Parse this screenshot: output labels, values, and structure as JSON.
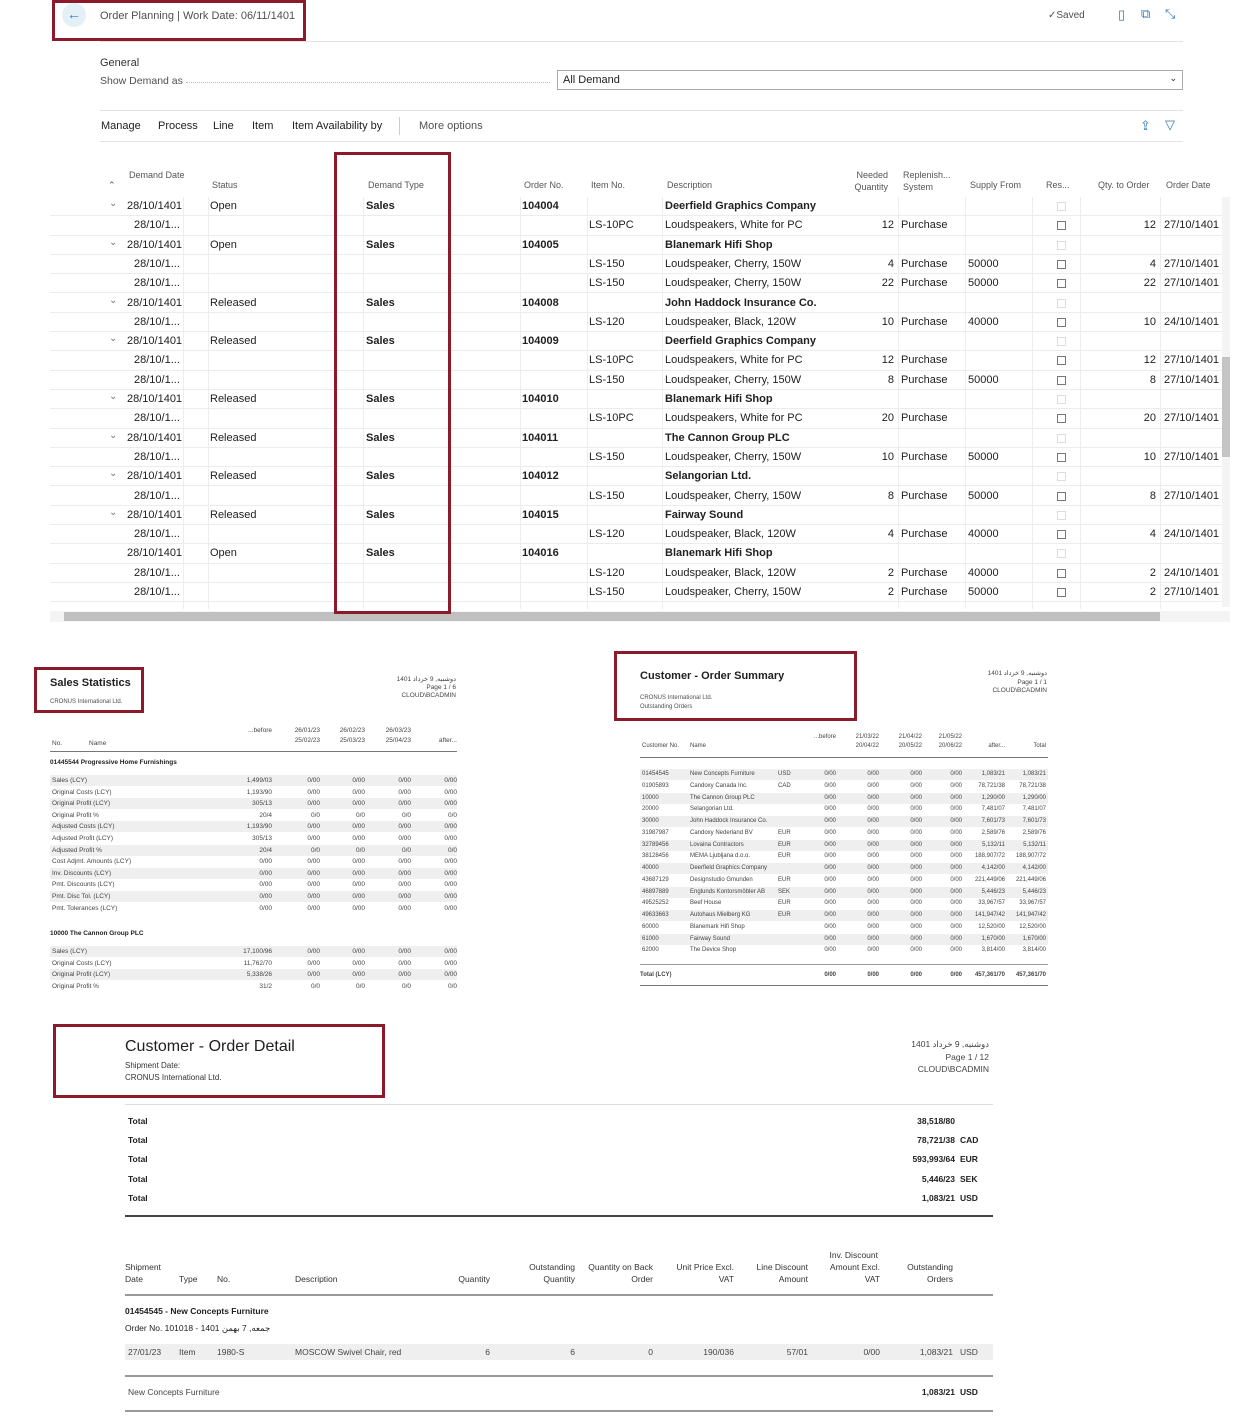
{
  "header": {
    "title": "Order Planning | Work Date: 06/11/1401",
    "saved": "Saved",
    "icons": [
      "back-arrow-icon",
      "checkmark-icon",
      "bookmark-icon",
      "open-new-window-icon",
      "collapse-icon"
    ]
  },
  "general": {
    "heading": "General",
    "show_demand_label": "Show Demand as",
    "show_demand_value": "All Demand"
  },
  "actions": {
    "items": [
      "Manage",
      "Process",
      "Line",
      "Item",
      "Item Availability by"
    ],
    "more": "More options"
  },
  "grid": {
    "columns": [
      "Demand Date",
      "Status",
      "Demand Type",
      "Order No.",
      "Item No.",
      "Description",
      "Needed Quantity",
      "Replenish... System",
      "Supply From",
      "Res...",
      "Qty. to Order",
      "Order Date"
    ],
    "rows": [
      {
        "parent": true,
        "exp": true,
        "date": "28/10/1401",
        "status": "Open",
        "type": "Sales",
        "order": "104004",
        "desc": "Deerfield Graphics Company"
      },
      {
        "date": "28/10/1...",
        "item": "LS-10PC",
        "desc": "Loudspeakers, White for PC",
        "qty": "12",
        "rep": "Purchase",
        "supply": "",
        "qto": "12",
        "odate": "27/10/1401"
      },
      {
        "parent": true,
        "exp": true,
        "date": "28/10/1401",
        "status": "Open",
        "type": "Sales",
        "order": "104005",
        "desc": "Blanemark Hifi Shop"
      },
      {
        "date": "28/10/1...",
        "item": "LS-150",
        "desc": "Loudspeaker, Cherry, 150W",
        "qty": "4",
        "rep": "Purchase",
        "supply": "50000",
        "qto": "4",
        "odate": "27/10/1401"
      },
      {
        "date": "28/10/1...",
        "item": "LS-150",
        "desc": "Loudspeaker, Cherry, 150W",
        "qty": "22",
        "rep": "Purchase",
        "supply": "50000",
        "qto": "22",
        "odate": "27/10/1401"
      },
      {
        "parent": true,
        "exp": true,
        "date": "28/10/1401",
        "status": "Released",
        "type": "Sales",
        "order": "104008",
        "desc": "John Haddock Insurance Co."
      },
      {
        "date": "28/10/1...",
        "item": "LS-120",
        "desc": "Loudspeaker, Black, 120W",
        "qty": "10",
        "rep": "Purchase",
        "supply": "40000",
        "qto": "10",
        "odate": "24/10/1401"
      },
      {
        "parent": true,
        "exp": true,
        "date": "28/10/1401",
        "status": "Released",
        "type": "Sales",
        "order": "104009",
        "desc": "Deerfield Graphics Company"
      },
      {
        "date": "28/10/1...",
        "item": "LS-10PC",
        "desc": "Loudspeakers, White for PC",
        "qty": "12",
        "rep": "Purchase",
        "supply": "",
        "qto": "12",
        "odate": "27/10/1401"
      },
      {
        "date": "28/10/1...",
        "item": "LS-150",
        "desc": "Loudspeaker, Cherry, 150W",
        "qty": "8",
        "rep": "Purchase",
        "supply": "50000",
        "qto": "8",
        "odate": "27/10/1401"
      },
      {
        "parent": true,
        "exp": true,
        "date": "28/10/1401",
        "status": "Released",
        "type": "Sales",
        "order": "104010",
        "desc": "Blanemark Hifi Shop"
      },
      {
        "date": "28/10/1...",
        "item": "LS-10PC",
        "desc": "Loudspeakers, White for PC",
        "qty": "20",
        "rep": "Purchase",
        "supply": "",
        "qto": "20",
        "odate": "27/10/1401"
      },
      {
        "parent": true,
        "exp": true,
        "date": "28/10/1401",
        "status": "Released",
        "type": "Sales",
        "order": "104011",
        "desc": "The Cannon Group PLC"
      },
      {
        "date": "28/10/1...",
        "item": "LS-150",
        "desc": "Loudspeaker, Cherry, 150W",
        "qty": "10",
        "rep": "Purchase",
        "supply": "50000",
        "qto": "10",
        "odate": "27/10/1401"
      },
      {
        "parent": true,
        "exp": true,
        "date": "28/10/1401",
        "status": "Released",
        "type": "Sales",
        "order": "104012",
        "desc": "Selangorian Ltd."
      },
      {
        "date": "28/10/1...",
        "item": "LS-150",
        "desc": "Loudspeaker, Cherry, 150W",
        "qty": "8",
        "rep": "Purchase",
        "supply": "50000",
        "qto": "8",
        "odate": "27/10/1401"
      },
      {
        "parent": true,
        "exp": true,
        "date": "28/10/1401",
        "status": "Released",
        "type": "Sales",
        "order": "104015",
        "desc": "Fairway Sound"
      },
      {
        "date": "28/10/1...",
        "item": "LS-120",
        "desc": "Loudspeaker, Black, 120W",
        "qty": "4",
        "rep": "Purchase",
        "supply": "40000",
        "qto": "4",
        "odate": "24/10/1401"
      },
      {
        "parent": true,
        "exp": false,
        "date": "28/10/1401",
        "status": "Open",
        "type": "Sales",
        "order": "104016",
        "desc": "Blanemark Hifi Shop"
      },
      {
        "date": "28/10/1...",
        "item": "LS-120",
        "desc": "Loudspeaker, Black, 120W",
        "qty": "2",
        "rep": "Purchase",
        "supply": "40000",
        "qto": "2",
        "odate": "24/10/1401"
      },
      {
        "date": "28/10/1...",
        "item": "LS-150",
        "desc": "Loudspeaker, Cherry, 150W",
        "qty": "2",
        "rep": "Purchase",
        "supply": "50000",
        "qto": "2",
        "odate": "27/10/1401"
      }
    ]
  },
  "sales_stats": {
    "title": "Sales Statistics",
    "company": "CRONUS International Ltd.",
    "date": "دوشنبه, 9 خرداد 1401",
    "page": "Page 1 / 6",
    "user": "CLOUD\\BCADMIN",
    "headers": {
      "no": "No.",
      "name": "Name",
      "before": "...before",
      "p1a": "26/01/23",
      "p1b": "25/02/23",
      "p2a": "26/02/23",
      "p2b": "25/03/23",
      "p3a": "26/03/23",
      "p3b": "25/04/23",
      "after": "after..."
    },
    "groups": [
      {
        "title": "01445544 Progressive Home Furnishings",
        "rows": [
          [
            "Sales (LCY)",
            "1,499/03",
            "0/00",
            "0/00",
            "0/00",
            "0/00"
          ],
          [
            "Original Costs (LCY)",
            "1,193/90",
            "0/00",
            "0/00",
            "0/00",
            "0/00"
          ],
          [
            "Original Profit (LCY)",
            "305/13",
            "0/00",
            "0/00",
            "0/00",
            "0/00"
          ],
          [
            "Original Profit %",
            "20/4",
            "0/0",
            "0/0",
            "0/0",
            "0/0"
          ],
          [
            "Adjusted Costs (LCY)",
            "1,193/90",
            "0/00",
            "0/00",
            "0/00",
            "0/00"
          ],
          [
            "Adjusted Profit (LCY)",
            "305/13",
            "0/00",
            "0/00",
            "0/00",
            "0/00"
          ],
          [
            "Adjusted Profit %",
            "20/4",
            "0/0",
            "0/0",
            "0/0",
            "0/0"
          ],
          [
            "Cost Adjmt. Amounts (LCY)",
            "0/00",
            "0/00",
            "0/00",
            "0/00",
            "0/00"
          ],
          [
            "Inv. Discounts (LCY)",
            "0/00",
            "0/00",
            "0/00",
            "0/00",
            "0/00"
          ],
          [
            "Pmt. Discounts (LCY)",
            "0/00",
            "0/00",
            "0/00",
            "0/00",
            "0/00"
          ],
          [
            "Pmt. Disc Tol. (LCY)",
            "0/00",
            "0/00",
            "0/00",
            "0/00",
            "0/00"
          ],
          [
            "Pmt. Tolerances (LCY)",
            "0/00",
            "0/00",
            "0/00",
            "0/00",
            "0/00"
          ]
        ]
      },
      {
        "title": "10000 The Cannon Group PLC",
        "rows": [
          [
            "Sales (LCY)",
            "17,100/96",
            "0/00",
            "0/00",
            "0/00",
            "0/00"
          ],
          [
            "Original Costs (LCY)",
            "11,762/70",
            "0/00",
            "0/00",
            "0/00",
            "0/00"
          ],
          [
            "Original Profit (LCY)",
            "5,338/26",
            "0/00",
            "0/00",
            "0/00",
            "0/00"
          ],
          [
            "Original Profit %",
            "31/2",
            "0/0",
            "0/0",
            "0/0",
            "0/0"
          ]
        ]
      }
    ]
  },
  "order_summary": {
    "title": "Customer - Order Summary",
    "company": "CRONUS International Ltd.",
    "subtitle": "Outstanding Orders",
    "date": "دوشنبه, 9 خرداد 1401",
    "page": "Page 1 / 1",
    "user": "CLOUD\\BCADMIN",
    "headers": {
      "no": "Customer No.",
      "name": "Name",
      "before": "...before",
      "p1a": "21/03/22",
      "p1b": "20/04/22",
      "p2a": "21/04/22",
      "p2b": "20/05/22",
      "p3a": "21/05/22",
      "p3b": "20/06/22",
      "after": "after...",
      "total": "Total"
    },
    "rows": [
      [
        "01454545",
        "New Concepts Furniture",
        "USD",
        "0/00",
        "0/00",
        "0/00",
        "0/00",
        "1,083/21",
        "1,083/21"
      ],
      [
        "01905893",
        "Candoxy Canada Inc.",
        "CAD",
        "0/00",
        "0/00",
        "0/00",
        "0/00",
        "78,721/38",
        "78,721/38"
      ],
      [
        "10000",
        "The Cannon Group PLC",
        "",
        "0/00",
        "0/00",
        "0/00",
        "0/00",
        "1,290/00",
        "1,290/00"
      ],
      [
        "20000",
        "Selangorian Ltd.",
        "",
        "0/00",
        "0/00",
        "0/00",
        "0/00",
        "7,481/07",
        "7,481/07"
      ],
      [
        "30000",
        "John Haddock Insurance Co.",
        "",
        "0/00",
        "0/00",
        "0/00",
        "0/00",
        "7,601/73",
        "7,601/73"
      ],
      [
        "31987987",
        "Candoxy Nederland BV",
        "EUR",
        "0/00",
        "0/00",
        "0/00",
        "0/00",
        "2,589/76",
        "2,589/76"
      ],
      [
        "32789456",
        "Lovaina Contractors",
        "EUR",
        "0/00",
        "0/00",
        "0/00",
        "0/00",
        "5,132/11",
        "5,132/11"
      ],
      [
        "38128456",
        "MEMA Ljubljana d.o.o.",
        "EUR",
        "0/00",
        "0/00",
        "0/00",
        "0/00",
        "188,907/72",
        "188,907/72"
      ],
      [
        "40000",
        "Deerfield Graphics Company",
        "",
        "0/00",
        "0/00",
        "0/00",
        "0/00",
        "4,142/00",
        "4,142/00"
      ],
      [
        "43687129",
        "Designstudio Gmunden",
        "EUR",
        "0/00",
        "0/00",
        "0/00",
        "0/00",
        "221,449/06",
        "221,449/06"
      ],
      [
        "46897889",
        "Englunds Kontorsmöbler AB",
        "SEK",
        "0/00",
        "0/00",
        "0/00",
        "0/00",
        "5,446/23",
        "5,446/23"
      ],
      [
        "49525252",
        "Beef House",
        "EUR",
        "0/00",
        "0/00",
        "0/00",
        "0/00",
        "33,967/57",
        "33,967/57"
      ],
      [
        "49633663",
        "Autohaus Mielberg KG",
        "EUR",
        "0/00",
        "0/00",
        "0/00",
        "0/00",
        "141,947/42",
        "141,947/42"
      ],
      [
        "60000",
        "Blanemark Hifi Shop",
        "",
        "0/00",
        "0/00",
        "0/00",
        "0/00",
        "12,520/00",
        "12,520/00"
      ],
      [
        "61000",
        "Fairway Sound",
        "",
        "0/00",
        "0/00",
        "0/00",
        "0/00",
        "1,670/00",
        "1,670/00"
      ],
      [
        "62000",
        "The Device Shop",
        "",
        "0/00",
        "0/00",
        "0/00",
        "0/00",
        "3,814/00",
        "3,814/00"
      ]
    ],
    "total": [
      "Total (LCY)",
      "",
      "",
      "0/00",
      "0/00",
      "0/00",
      "0/00",
      "457,361/70",
      "457,361/70"
    ]
  },
  "order_detail": {
    "title": "Customer - Order Detail",
    "shipment_label": "Shipment Date:",
    "company": "CRONUS International Ltd.",
    "date": "دوشنبه, 9 خرداد 1401",
    "page": "Page 1 / 12",
    "user": "CLOUD\\BCADMIN",
    "totals": [
      [
        "Total",
        "38,518/80",
        ""
      ],
      [
        "Total",
        "78,721/38",
        "CAD"
      ],
      [
        "Total",
        "593,993/64",
        "EUR"
      ],
      [
        "Total",
        "5,446/23",
        "SEK"
      ],
      [
        "Total",
        "1,083/21",
        "USD"
      ]
    ],
    "headers": {
      "ship1": "Shipment",
      "ship2": "Date",
      "type": "Type",
      "no": "No.",
      "desc": "Description",
      "qty": "Quantity",
      "oq1": "Outstanding",
      "oq2": "Quantity",
      "bo1": "Quantity on Back",
      "bo2": "Order",
      "up1": "Unit Price Excl.",
      "up2": "VAT",
      "ld1": "Line Discount",
      "ld2": "Amount",
      "id1": "Inv. Discount",
      "id2": "Amount Excl.",
      "id3": "VAT",
      "oo1": "Outstanding",
      "oo2": "Orders"
    },
    "group_title": "01454545 - New Concepts Furniture",
    "order_line": "Order No. 101018 - جمعه, 7 بهمن 1401",
    "line": [
      "27/01/23",
      "Item",
      "1980-S",
      "MOSCOW Swivel Chair, red",
      "6",
      "6",
      "0",
      "190/036",
      "57/01",
      "0/00",
      "1,083/21",
      "USD"
    ],
    "footer": [
      "New Concepts Furniture",
      "1,083/21",
      "USD"
    ]
  }
}
